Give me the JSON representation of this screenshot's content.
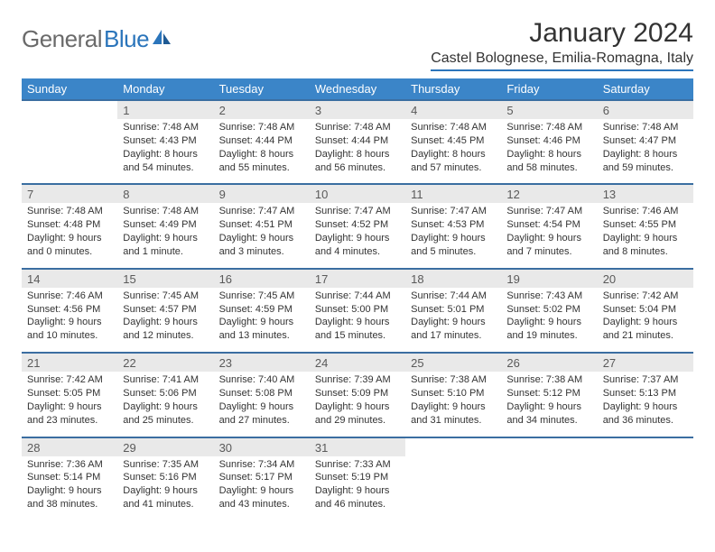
{
  "logo": {
    "part1": "General",
    "part2": "Blue"
  },
  "title": "January 2024",
  "location": "Castel Bolognese, Emilia-Romagna, Italy",
  "colors": {
    "header_bg": "#3b85c8",
    "row_divider": "#3b6ea1",
    "daynum_bg": "#e9e9e9",
    "logo_gray": "#6a6a6a",
    "logo_blue": "#2b75bb"
  },
  "days_of_week": [
    "Sunday",
    "Monday",
    "Tuesday",
    "Wednesday",
    "Thursday",
    "Friday",
    "Saturday"
  ],
  "weeks": [
    [
      null,
      {
        "n": "1",
        "sr": "Sunrise: 7:48 AM",
        "ss": "Sunset: 4:43 PM",
        "d1": "Daylight: 8 hours",
        "d2": "and 54 minutes."
      },
      {
        "n": "2",
        "sr": "Sunrise: 7:48 AM",
        "ss": "Sunset: 4:44 PM",
        "d1": "Daylight: 8 hours",
        "d2": "and 55 minutes."
      },
      {
        "n": "3",
        "sr": "Sunrise: 7:48 AM",
        "ss": "Sunset: 4:44 PM",
        "d1": "Daylight: 8 hours",
        "d2": "and 56 minutes."
      },
      {
        "n": "4",
        "sr": "Sunrise: 7:48 AM",
        "ss": "Sunset: 4:45 PM",
        "d1": "Daylight: 8 hours",
        "d2": "and 57 minutes."
      },
      {
        "n": "5",
        "sr": "Sunrise: 7:48 AM",
        "ss": "Sunset: 4:46 PM",
        "d1": "Daylight: 8 hours",
        "d2": "and 58 minutes."
      },
      {
        "n": "6",
        "sr": "Sunrise: 7:48 AM",
        "ss": "Sunset: 4:47 PM",
        "d1": "Daylight: 8 hours",
        "d2": "and 59 minutes."
      }
    ],
    [
      {
        "n": "7",
        "sr": "Sunrise: 7:48 AM",
        "ss": "Sunset: 4:48 PM",
        "d1": "Daylight: 9 hours",
        "d2": "and 0 minutes."
      },
      {
        "n": "8",
        "sr": "Sunrise: 7:48 AM",
        "ss": "Sunset: 4:49 PM",
        "d1": "Daylight: 9 hours",
        "d2": "and 1 minute."
      },
      {
        "n": "9",
        "sr": "Sunrise: 7:47 AM",
        "ss": "Sunset: 4:51 PM",
        "d1": "Daylight: 9 hours",
        "d2": "and 3 minutes."
      },
      {
        "n": "10",
        "sr": "Sunrise: 7:47 AM",
        "ss": "Sunset: 4:52 PM",
        "d1": "Daylight: 9 hours",
        "d2": "and 4 minutes."
      },
      {
        "n": "11",
        "sr": "Sunrise: 7:47 AM",
        "ss": "Sunset: 4:53 PM",
        "d1": "Daylight: 9 hours",
        "d2": "and 5 minutes."
      },
      {
        "n": "12",
        "sr": "Sunrise: 7:47 AM",
        "ss": "Sunset: 4:54 PM",
        "d1": "Daylight: 9 hours",
        "d2": "and 7 minutes."
      },
      {
        "n": "13",
        "sr": "Sunrise: 7:46 AM",
        "ss": "Sunset: 4:55 PM",
        "d1": "Daylight: 9 hours",
        "d2": "and 8 minutes."
      }
    ],
    [
      {
        "n": "14",
        "sr": "Sunrise: 7:46 AM",
        "ss": "Sunset: 4:56 PM",
        "d1": "Daylight: 9 hours",
        "d2": "and 10 minutes."
      },
      {
        "n": "15",
        "sr": "Sunrise: 7:45 AM",
        "ss": "Sunset: 4:57 PM",
        "d1": "Daylight: 9 hours",
        "d2": "and 12 minutes."
      },
      {
        "n": "16",
        "sr": "Sunrise: 7:45 AM",
        "ss": "Sunset: 4:59 PM",
        "d1": "Daylight: 9 hours",
        "d2": "and 13 minutes."
      },
      {
        "n": "17",
        "sr": "Sunrise: 7:44 AM",
        "ss": "Sunset: 5:00 PM",
        "d1": "Daylight: 9 hours",
        "d2": "and 15 minutes."
      },
      {
        "n": "18",
        "sr": "Sunrise: 7:44 AM",
        "ss": "Sunset: 5:01 PM",
        "d1": "Daylight: 9 hours",
        "d2": "and 17 minutes."
      },
      {
        "n": "19",
        "sr": "Sunrise: 7:43 AM",
        "ss": "Sunset: 5:02 PM",
        "d1": "Daylight: 9 hours",
        "d2": "and 19 minutes."
      },
      {
        "n": "20",
        "sr": "Sunrise: 7:42 AM",
        "ss": "Sunset: 5:04 PM",
        "d1": "Daylight: 9 hours",
        "d2": "and 21 minutes."
      }
    ],
    [
      {
        "n": "21",
        "sr": "Sunrise: 7:42 AM",
        "ss": "Sunset: 5:05 PM",
        "d1": "Daylight: 9 hours",
        "d2": "and 23 minutes."
      },
      {
        "n": "22",
        "sr": "Sunrise: 7:41 AM",
        "ss": "Sunset: 5:06 PM",
        "d1": "Daylight: 9 hours",
        "d2": "and 25 minutes."
      },
      {
        "n": "23",
        "sr": "Sunrise: 7:40 AM",
        "ss": "Sunset: 5:08 PM",
        "d1": "Daylight: 9 hours",
        "d2": "and 27 minutes."
      },
      {
        "n": "24",
        "sr": "Sunrise: 7:39 AM",
        "ss": "Sunset: 5:09 PM",
        "d1": "Daylight: 9 hours",
        "d2": "and 29 minutes."
      },
      {
        "n": "25",
        "sr": "Sunrise: 7:38 AM",
        "ss": "Sunset: 5:10 PM",
        "d1": "Daylight: 9 hours",
        "d2": "and 31 minutes."
      },
      {
        "n": "26",
        "sr": "Sunrise: 7:38 AM",
        "ss": "Sunset: 5:12 PM",
        "d1": "Daylight: 9 hours",
        "d2": "and 34 minutes."
      },
      {
        "n": "27",
        "sr": "Sunrise: 7:37 AM",
        "ss": "Sunset: 5:13 PM",
        "d1": "Daylight: 9 hours",
        "d2": "and 36 minutes."
      }
    ],
    [
      {
        "n": "28",
        "sr": "Sunrise: 7:36 AM",
        "ss": "Sunset: 5:14 PM",
        "d1": "Daylight: 9 hours",
        "d2": "and 38 minutes."
      },
      {
        "n": "29",
        "sr": "Sunrise: 7:35 AM",
        "ss": "Sunset: 5:16 PM",
        "d1": "Daylight: 9 hours",
        "d2": "and 41 minutes."
      },
      {
        "n": "30",
        "sr": "Sunrise: 7:34 AM",
        "ss": "Sunset: 5:17 PM",
        "d1": "Daylight: 9 hours",
        "d2": "and 43 minutes."
      },
      {
        "n": "31",
        "sr": "Sunrise: 7:33 AM",
        "ss": "Sunset: 5:19 PM",
        "d1": "Daylight: 9 hours",
        "d2": "and 46 minutes."
      },
      null,
      null,
      null
    ]
  ]
}
